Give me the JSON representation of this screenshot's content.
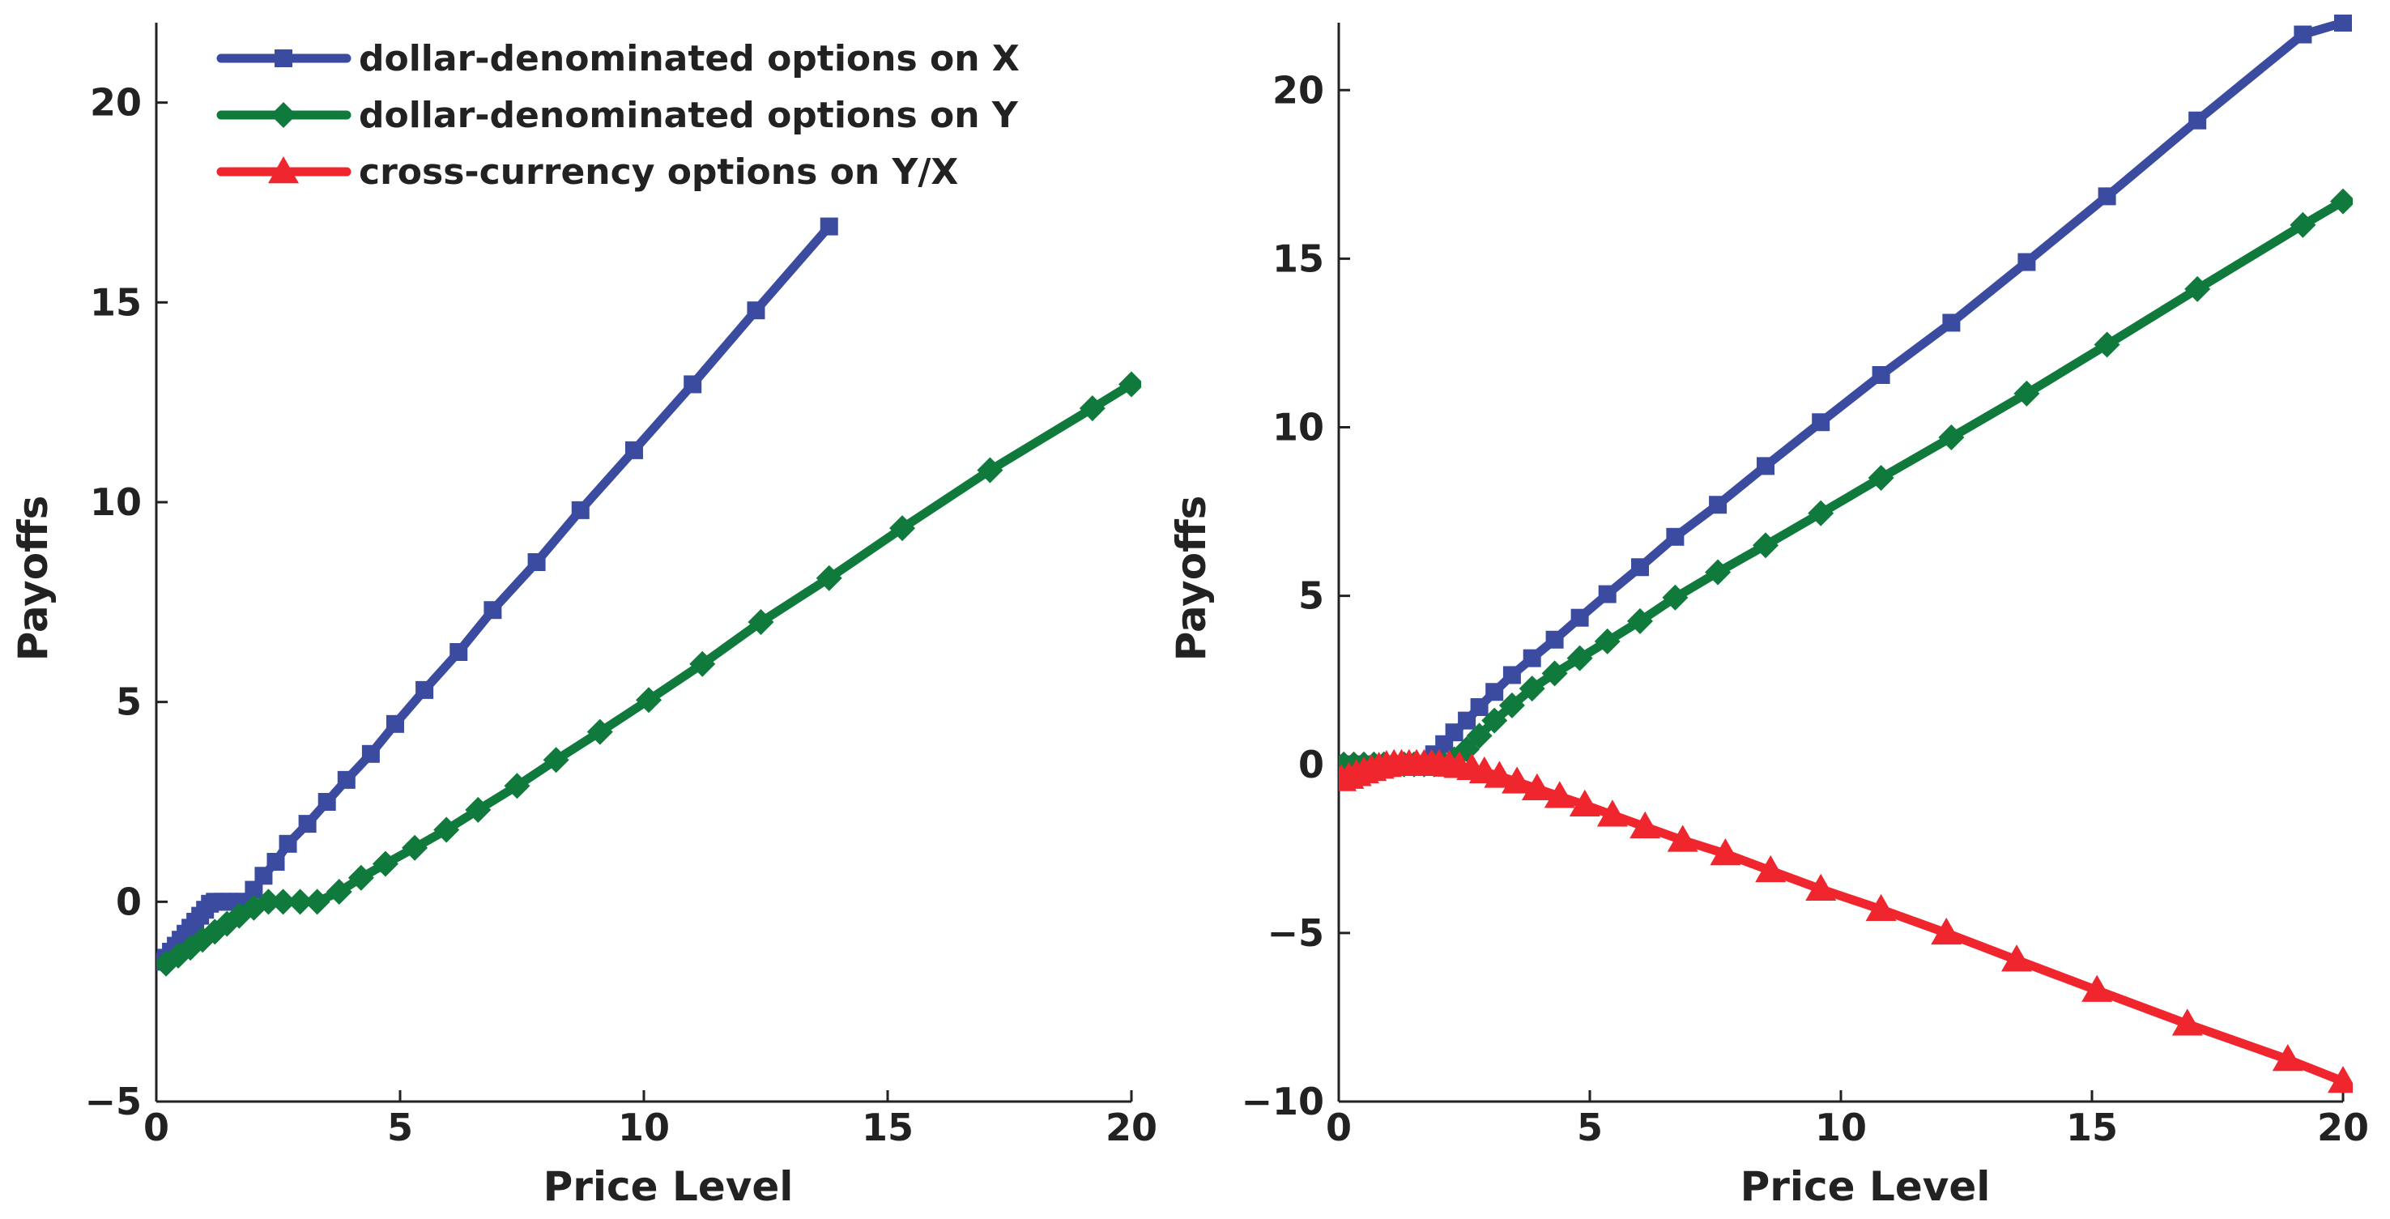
{
  "colors": {
    "series_x": "#3a4ba0",
    "series_y": "#0f7a3c",
    "series_cross": "#f0262e",
    "axis": "#222222"
  },
  "legend": {
    "entries": [
      {
        "label": "dollar-denominated options on X",
        "marker": "square",
        "color": "#3a4ba0"
      },
      {
        "label": "dollar-denominated options on Y",
        "marker": "diamond",
        "color": "#0f7a3c"
      },
      {
        "label": "cross-currency options on Y/X",
        "marker": "triangle",
        "color": "#f0262e"
      }
    ],
    "position": "top-left"
  },
  "chart_data": [
    {
      "type": "line",
      "title": "",
      "xlabel": "Price Level",
      "ylabel": "Payoffs",
      "xlim": [
        0,
        20
      ],
      "ylim": [
        -5,
        22
      ],
      "xticks": [
        0,
        5,
        10,
        15,
        20
      ],
      "yticks": [
        -5,
        0,
        5,
        10,
        15,
        20
      ],
      "xtick_labels": [
        "0",
        "5",
        "10",
        "15",
        "20"
      ],
      "ytick_labels": [
        "−5",
        "0",
        "5",
        "10",
        "15",
        "20"
      ],
      "series": [
        {
          "name": "dollar-denominated options on X",
          "marker": "square",
          "color": "#3a4ba0",
          "x": [
            0.1,
            0.2,
            0.3,
            0.4,
            0.5,
            0.6,
            0.7,
            0.8,
            0.9,
            1.0,
            1.1,
            1.2,
            1.35,
            1.5,
            1.65,
            1.8,
            2.0,
            2.2,
            2.45,
            2.7,
            3.1,
            3.5,
            3.9,
            4.4,
            4.9,
            5.5,
            6.2,
            6.9,
            7.8,
            8.7,
            9.8,
            11.0,
            12.3,
            13.8
          ],
          "y": [
            -1.5,
            -1.4,
            -1.25,
            -1.1,
            -0.95,
            -0.8,
            -0.65,
            -0.5,
            -0.35,
            -0.2,
            -0.05,
            0.0,
            0.0,
            0.0,
            0.0,
            0.0,
            0.3,
            0.65,
            1.0,
            1.45,
            1.95,
            2.5,
            3.05,
            3.7,
            4.45,
            5.3,
            6.25,
            7.3,
            8.5,
            9.8,
            11.3,
            12.95,
            14.8,
            16.9
          ]
        },
        {
          "name": "dollar-denominated options on Y",
          "marker": "diamond",
          "color": "#0f7a3c",
          "x": [
            0.2,
            0.45,
            0.7,
            0.95,
            1.2,
            1.45,
            1.7,
            2.0,
            2.3,
            2.6,
            2.95,
            3.3,
            3.75,
            4.2,
            4.7,
            5.3,
            5.95,
            6.6,
            7.4,
            8.2,
            9.1,
            10.1,
            11.2,
            12.4,
            13.8,
            15.3,
            17.1,
            19.2,
            20.0
          ],
          "y": [
            -1.55,
            -1.35,
            -1.15,
            -0.95,
            -0.75,
            -0.55,
            -0.35,
            -0.15,
            0.0,
            0.0,
            0.0,
            0.0,
            0.25,
            0.6,
            0.95,
            1.35,
            1.8,
            2.3,
            2.9,
            3.55,
            4.25,
            5.05,
            5.95,
            7.0,
            8.1,
            9.35,
            10.8,
            12.35,
            12.95
          ]
        }
      ]
    },
    {
      "type": "line",
      "title": "",
      "xlabel": "Price Level",
      "ylabel": "Payoffs",
      "xlim": [
        0,
        20
      ],
      "ylim": [
        -10,
        22
      ],
      "xticks": [
        0,
        5,
        10,
        15,
        20
      ],
      "yticks": [
        -10,
        -5,
        0,
        5,
        10,
        15,
        20
      ],
      "xtick_labels": [
        "0",
        "5",
        "10",
        "15",
        "20"
      ],
      "ytick_labels": [
        "−10",
        "−5",
        "0",
        "5",
        "10",
        "15",
        "20"
      ],
      "series": [
        {
          "name": "dollar-denominated options on X",
          "marker": "square",
          "color": "#3a4ba0",
          "x": [
            0.1,
            0.3,
            0.5,
            0.7,
            0.9,
            1.1,
            1.3,
            1.5,
            1.7,
            1.9,
            2.1,
            2.3,
            2.55,
            2.8,
            3.1,
            3.45,
            3.85,
            4.3,
            4.8,
            5.35,
            6.0,
            6.7,
            7.55,
            8.5,
            9.6,
            10.8,
            12.2,
            13.7,
            15.3,
            17.1,
            19.2,
            20.0
          ],
          "y": [
            0.0,
            0.0,
            0.0,
            0.0,
            0.0,
            0.0,
            0.0,
            0.0,
            0.0,
            0.3,
            0.6,
            0.95,
            1.3,
            1.7,
            2.15,
            2.65,
            3.15,
            3.7,
            4.35,
            5.05,
            5.85,
            6.75,
            7.7,
            8.85,
            10.15,
            11.55,
            13.1,
            14.9,
            16.85,
            19.1,
            21.65,
            22.0
          ]
        },
        {
          "name": "dollar-denominated options on Y",
          "marker": "diamond",
          "color": "#0f7a3c",
          "x": [
            0.1,
            0.3,
            0.5,
            0.7,
            0.9,
            1.1,
            1.3,
            1.5,
            1.7,
            1.9,
            2.1,
            2.3,
            2.55,
            2.8,
            3.1,
            3.45,
            3.85,
            4.3,
            4.8,
            5.35,
            6.0,
            6.7,
            7.55,
            8.5,
            9.6,
            10.8,
            12.2,
            13.7,
            15.3,
            17.1,
            19.2,
            20.0
          ],
          "y": [
            0.0,
            0.0,
            0.0,
            0.0,
            0.0,
            0.0,
            0.0,
            0.0,
            0.0,
            0.0,
            0.0,
            0.15,
            0.45,
            0.85,
            1.3,
            1.75,
            2.25,
            2.7,
            3.15,
            3.65,
            4.25,
            4.95,
            5.7,
            6.5,
            7.45,
            8.5,
            9.7,
            11.0,
            12.45,
            14.1,
            16.0,
            16.7
          ]
        },
        {
          "name": "cross-currency options on Y/X",
          "marker": "triangle",
          "color": "#f0262e",
          "x": [
            0.05,
            0.2,
            0.35,
            0.5,
            0.65,
            0.8,
            0.95,
            1.1,
            1.25,
            1.4,
            1.55,
            1.7,
            1.85,
            2.0,
            2.2,
            2.4,
            2.65,
            2.9,
            3.2,
            3.55,
            3.95,
            4.4,
            4.9,
            5.45,
            6.1,
            6.85,
            7.7,
            8.6,
            9.6,
            10.8,
            12.1,
            13.5,
            15.1,
            16.9,
            18.9,
            20.0
          ],
          "y": [
            -0.45,
            -0.38,
            -0.3,
            -0.22,
            -0.15,
            -0.08,
            -0.03,
            0.0,
            0.0,
            0.0,
            0.0,
            0.0,
            0.0,
            0.0,
            -0.02,
            -0.06,
            -0.12,
            -0.22,
            -0.35,
            -0.52,
            -0.72,
            -0.95,
            -1.2,
            -1.5,
            -1.85,
            -2.25,
            -2.65,
            -3.15,
            -3.7,
            -4.3,
            -5.0,
            -5.8,
            -6.7,
            -7.7,
            -8.75,
            -9.4
          ]
        }
      ]
    }
  ]
}
